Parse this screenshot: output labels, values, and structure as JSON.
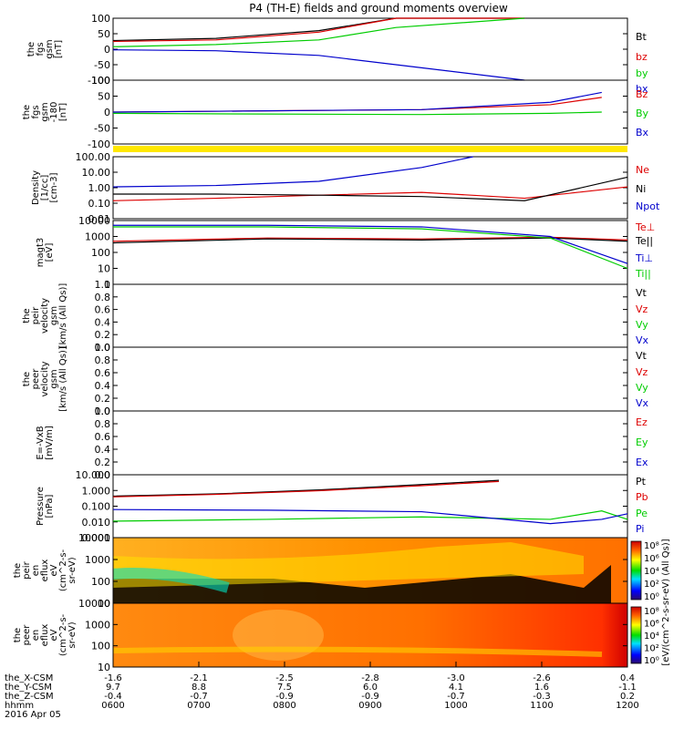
{
  "title": "P4 (TH-E) fields and ground moments overview",
  "colors": {
    "black": "#000000",
    "red": "#dd0000",
    "green": "#00cc00",
    "blue": "#0000cc",
    "yellow": "#ffe800"
  },
  "chart_data": [
    {
      "type": "line",
      "panel": "fgs-gsm",
      "ylabel": [
        "the",
        "fgs",
        "gsm",
        "[nT]"
      ],
      "ylim": [
        -100,
        100
      ],
      "yticks": [
        "100",
        "50",
        "0",
        "-50",
        "-100"
      ],
      "series": [
        {
          "name": "Bt",
          "color": "#000000",
          "x": [
            0,
            0.2,
            0.4,
            0.55,
            0.8
          ],
          "values": [
            28,
            35,
            60,
            100,
            100
          ]
        },
        {
          "name": "bz",
          "color": "#dd0000",
          "x": [
            0,
            0.2,
            0.4,
            0.55,
            0.8
          ],
          "values": [
            25,
            30,
            55,
            100,
            100
          ]
        },
        {
          "name": "by",
          "color": "#00cc00",
          "x": [
            0,
            0.2,
            0.4,
            0.55,
            0.8
          ],
          "values": [
            8,
            15,
            30,
            70,
            100
          ]
        },
        {
          "name": "bx",
          "color": "#0000cc",
          "x": [
            0,
            0.2,
            0.4,
            0.55,
            0.8
          ],
          "values": [
            -2,
            -5,
            -20,
            -50,
            -100
          ]
        }
      ]
    },
    {
      "type": "line",
      "panel": "fgs-gsm-2",
      "ylabel": [
        "the",
        "fgs",
        "gsm",
        "-180",
        "[nT]"
      ],
      "ylim": [
        -130,
        130
      ],
      "yticks": [
        "100",
        "50",
        "0",
        "-50",
        "-100"
      ],
      "series": [
        {
          "name": "Bz",
          "color": "#dd0000",
          "x": [
            0,
            0.3,
            0.6,
            0.85,
            0.95
          ],
          "values": [
            0,
            5,
            10,
            30,
            60
          ]
        },
        {
          "name": "By",
          "color": "#00cc00",
          "x": [
            0,
            0.3,
            0.6,
            0.85,
            0.95
          ],
          "values": [
            -5,
            -8,
            -10,
            -5,
            0
          ]
        },
        {
          "name": "Bx",
          "color": "#0000cc",
          "x": [
            0,
            0.3,
            0.6,
            0.85,
            0.95
          ],
          "values": [
            0,
            5,
            10,
            40,
            80
          ]
        }
      ]
    },
    {
      "type": "line",
      "panel": "density",
      "yscale": "log",
      "ylabel": [
        "Density",
        "[1/cc]",
        "[cm-3]"
      ],
      "ylim": [
        0.01,
        300
      ],
      "yticks": [
        "100.00",
        "10.00",
        "1.00",
        "0.10",
        "0.01"
      ],
      "series": [
        {
          "name": "Ne",
          "color": "#dd0000",
          "x": [
            0,
            0.2,
            0.4,
            0.6,
            0.8,
            1
          ],
          "values": [
            0.2,
            0.3,
            0.5,
            0.8,
            0.3,
            2
          ]
        },
        {
          "name": "Ni",
          "color": "#000000",
          "x": [
            0,
            0.2,
            0.4,
            0.6,
            0.8,
            1
          ],
          "values": [
            0.6,
            0.6,
            0.5,
            0.4,
            0.2,
            10
          ]
        },
        {
          "name": "Npot",
          "color": "#0000cc",
          "x": [
            0,
            0.2,
            0.4,
            0.6,
            0.7
          ],
          "values": [
            2,
            2.5,
            5,
            50,
            300
          ]
        }
      ]
    },
    {
      "type": "line",
      "panel": "temperature",
      "yscale": "log",
      "ylabel": [
        "magt3",
        "[eV]"
      ],
      "ylim": [
        1,
        10000
      ],
      "yticks": [
        "10000",
        "1000",
        "100",
        "10",
        "1"
      ],
      "series": [
        {
          "name": "Te⊥",
          "color": "#dd0000",
          "x": [
            0,
            0.3,
            0.6,
            0.85,
            1
          ],
          "values": [
            500,
            800,
            700,
            900,
            600
          ]
        },
        {
          "name": "Te||",
          "color": "#000000",
          "x": [
            0,
            0.3,
            0.6,
            0.85,
            1
          ],
          "values": [
            400,
            700,
            600,
            800,
            500
          ]
        },
        {
          "name": "Ti⊥",
          "color": "#0000cc",
          "x": [
            0,
            0.3,
            0.6,
            0.85,
            1
          ],
          "values": [
            5000,
            5000,
            4000,
            1000,
            20
          ]
        },
        {
          "name": "Ti||",
          "color": "#00cc00",
          "x": [
            0,
            0.3,
            0.6,
            0.85,
            1
          ],
          "values": [
            4000,
            4000,
            3000,
            800,
            10
          ]
        }
      ]
    },
    {
      "type": "line",
      "panel": "ion-velocity",
      "ylabel": [
        "the",
        "peir",
        "velocity",
        "gsm",
        "[km/s (All Qs)]"
      ],
      "ylim": [
        0,
        1
      ],
      "yticks": [
        "1.0",
        "0.8",
        "0.6",
        "0.4",
        "0.2",
        "0.0"
      ],
      "series": [
        {
          "name": "Vt",
          "color": "#000000"
        },
        {
          "name": "Vz",
          "color": "#dd0000"
        },
        {
          "name": "Vy",
          "color": "#00cc00"
        },
        {
          "name": "Vx",
          "color": "#0000cc"
        }
      ]
    },
    {
      "type": "line",
      "panel": "electron-velocity",
      "ylabel": [
        "the",
        "peer",
        "velocity",
        "gsm",
        "[km/s (All Qs)]"
      ],
      "ylim": [
        0,
        1
      ],
      "yticks": [
        "1.0",
        "0.8",
        "0.6",
        "0.4",
        "0.2",
        "0.0"
      ],
      "series": [
        {
          "name": "Vt",
          "color": "#000000"
        },
        {
          "name": "Vz",
          "color": "#dd0000"
        },
        {
          "name": "Vy",
          "color": "#00cc00"
        },
        {
          "name": "Vx",
          "color": "#0000cc"
        }
      ]
    },
    {
      "type": "line",
      "panel": "efield",
      "ylabel": [
        "E=-VxB",
        "[mV/m]"
      ],
      "ylim": [
        0,
        1
      ],
      "yticks": [
        "1.0",
        "0.8",
        "0.6",
        "0.4",
        "0.2",
        "0.0"
      ],
      "series": [
        {
          "name": "Ez",
          "color": "#dd0000"
        },
        {
          "name": "Ey",
          "color": "#00cc00"
        },
        {
          "name": "Ex",
          "color": "#0000cc"
        }
      ]
    },
    {
      "type": "line",
      "panel": "pressure",
      "yscale": "log",
      "ylabel": [
        "Pressure",
        "[nPa]"
      ],
      "ylim": [
        0.001,
        30
      ],
      "yticks": [
        "10.000",
        "1.000",
        "0.100",
        "0.010",
        "0.001"
      ],
      "series": [
        {
          "name": "Pt",
          "color": "#000000",
          "x": [
            0,
            0.2,
            0.4,
            0.6,
            0.75
          ],
          "values": [
            0.9,
            1.3,
            2.5,
            6,
            12
          ]
        },
        {
          "name": "Pb",
          "color": "#dd0000",
          "x": [
            0,
            0.2,
            0.4,
            0.6,
            0.75
          ],
          "values": [
            0.8,
            1.2,
            2.2,
            5,
            10
          ]
        },
        {
          "name": "Pe",
          "color": "#00cc00",
          "x": [
            0,
            0.3,
            0.6,
            0.85,
            0.95,
            1
          ],
          "values": [
            0.015,
            0.02,
            0.03,
            0.02,
            0.08,
            0.02
          ]
        },
        {
          "name": "Pi",
          "color": "#0000cc",
          "x": [
            0,
            0.3,
            0.6,
            0.85,
            0.95,
            1
          ],
          "values": [
            0.1,
            0.09,
            0.07,
            0.01,
            0.02,
            0.05
          ]
        }
      ]
    },
    {
      "type": "heatmap",
      "panel": "ion-spectrogram",
      "ylabel": [
        "the",
        "peir",
        "en",
        "eflux",
        "eV",
        "(cm^2-s-",
        "sr-eV)"
      ],
      "yticks": [
        "10000",
        "1000",
        "100",
        "10"
      ],
      "colorbar_label": "[eV/(cm^2-s-sr-eV) (All Qs)]",
      "colorbar_ticks": [
        "10⁸",
        "10⁶",
        "10⁴",
        "10²",
        "10⁰"
      ]
    },
    {
      "type": "heatmap",
      "panel": "electron-spectrogram",
      "ylabel": [
        "the",
        "peer",
        "en",
        "eflux",
        "eV",
        "(cm^2-s-",
        "sr-eV)"
      ],
      "yticks": [
        "10000",
        "1000",
        "100",
        "10"
      ],
      "colorbar_label": "[eV/(cm^2-s-sr-eV) (All Qs)]",
      "colorbar_ticks": [
        "10⁸",
        "10⁶",
        "10⁴",
        "10²",
        "10⁰"
      ]
    }
  ],
  "xaxis": {
    "row_labels": [
      "the_X-CSM",
      "the_Y-CSM",
      "the_Z-CSM",
      "hhmm"
    ],
    "date_label": "2016 Apr 05",
    "columns": [
      {
        "x": "-1.6",
        "y": "9.7",
        "z": "-0.4",
        "t": "0600"
      },
      {
        "x": "-2.1",
        "y": "8.8",
        "z": "-0.7",
        "t": "0700"
      },
      {
        "x": "-2.5",
        "y": "7.5",
        "z": "-0.9",
        "t": "0800"
      },
      {
        "x": "-2.8",
        "y": "6.0",
        "z": "-0.9",
        "t": "0900"
      },
      {
        "x": "-3.0",
        "y": "4.1",
        "z": "-0.7",
        "t": "1000"
      },
      {
        "x": "-2.6",
        "y": "1.6",
        "z": "-0.3",
        "t": "1100"
      },
      {
        "x": "0.4",
        "y": "-1.1",
        "z": "0.2",
        "t": "1200"
      }
    ]
  }
}
